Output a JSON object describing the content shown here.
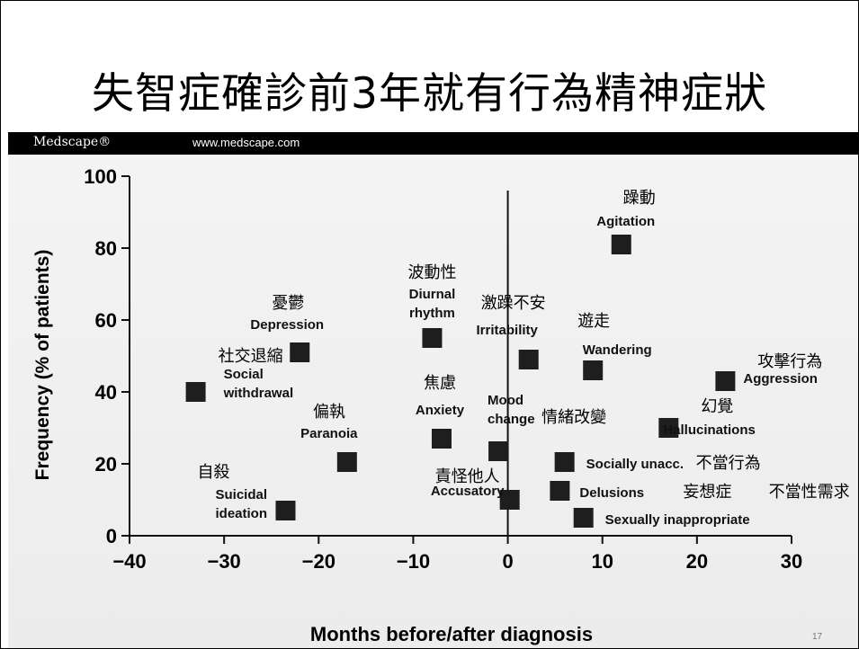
{
  "slide": {
    "title": "失智症確診前3年就有行為精神症狀",
    "page_number": "17"
  },
  "header": {
    "brand": "Medscape®",
    "url": "www.medscape.com"
  },
  "chart_data": {
    "type": "scatter",
    "title": "",
    "xlabel": "Months before/after diagnosis",
    "ylabel": "Frequency (% of patients)",
    "xlim": [
      -40,
      30
    ],
    "ylim": [
      0,
      100
    ],
    "x_ticks": [
      -40,
      -30,
      -20,
      -10,
      0,
      10,
      20,
      30
    ],
    "x_tick_labels": [
      "−40",
      "−30",
      "−20",
      "−10",
      "0",
      "10",
      "20",
      "30"
    ],
    "y_ticks": [
      0,
      20,
      40,
      60,
      80,
      100
    ],
    "reference_line_x": 0,
    "marker": "square",
    "marker_color": "#1e1e1e",
    "points": [
      {
        "x": -33,
        "y": 40,
        "zh": "社交退縮",
        "en": "Social\nwithdrawal"
      },
      {
        "x": -22,
        "y": 51,
        "zh": "憂鬱",
        "en": "Depression"
      },
      {
        "x": -23.5,
        "y": 7,
        "zh": "自殺",
        "en": "Suicidal\nideation"
      },
      {
        "x": -17,
        "y": 20.5,
        "zh": "偏執",
        "en": "Paranoia"
      },
      {
        "x": -8,
        "y": 55,
        "zh": "波動性",
        "en": "Diurnal\nrhythm"
      },
      {
        "x": -7,
        "y": 27,
        "zh": "焦慮",
        "en": "Anxiety"
      },
      {
        "x": -1,
        "y": 23.5,
        "zh": "",
        "en": "Mood\nchange"
      },
      {
        "x": 0.2,
        "y": 10,
        "zh": "責怪他人",
        "en": "Accusatory"
      },
      {
        "x": 2.2,
        "y": 49,
        "zh": "激躁不安",
        "en": "Irritability"
      },
      {
        "x": 12,
        "y": 81,
        "zh": "躁動",
        "en": "Agitation"
      },
      {
        "x": 9,
        "y": 46,
        "zh": "遊走",
        "en": "Wandering"
      },
      {
        "x": 6,
        "y": 20.5,
        "zh": "不當行為",
        "en": "Socially unacc."
      },
      {
        "x": 5.5,
        "y": 12.5,
        "zh": "妄想症",
        "en": "Delusions"
      },
      {
        "x": 8,
        "y": 5,
        "zh": "不當性需求",
        "en": "Sexually inappropriate"
      },
      {
        "x": 17,
        "y": 30,
        "zh": "幻覺",
        "en": "Hallucinations"
      },
      {
        "x": 23,
        "y": 43,
        "zh": "攻擊行為",
        "en": "Aggression"
      }
    ],
    "annotation_extra": "情緒改變"
  }
}
